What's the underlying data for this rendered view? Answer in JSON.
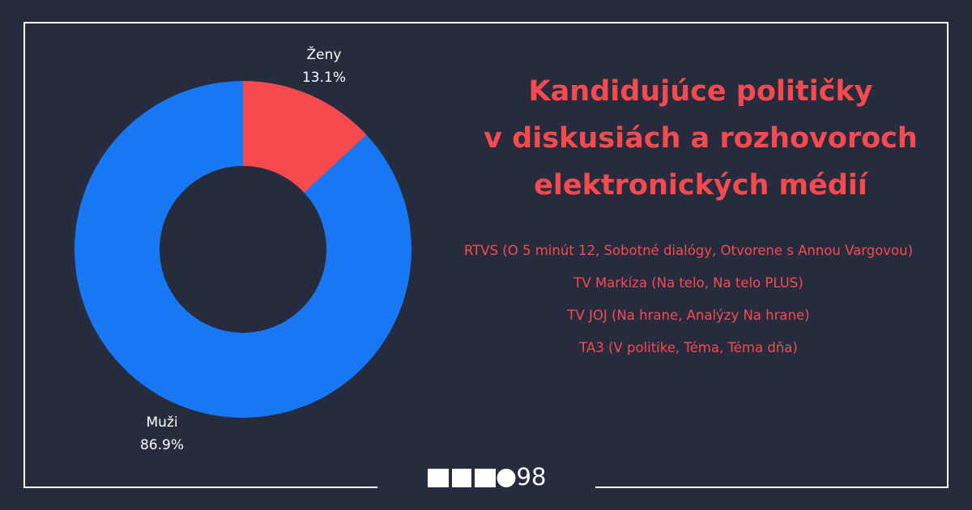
{
  "chart_data": {
    "type": "donut",
    "title": [
      "Kandidujúce političky",
      "v diskusiách a rozhovoroch",
      "elektronických médií"
    ],
    "sources": [
      "RTVS (O 5 minút 12, Sobotné dialógy, Otvorene s Annou Vargovou)",
      "TV Markíza (Na telo, Na telo PLUS)",
      "TV JOJ (Na hrane, Analýzy Na hrane)",
      "TA3 (V politike, Téma, Téma dňa)"
    ],
    "categories": [
      "Ženy",
      "Muži"
    ],
    "values": [
      13.1,
      86.9
    ],
    "value_labels": [
      "13.1%",
      "86.9%"
    ],
    "colors": [
      "#f64a4f",
      "#1877f2"
    ],
    "logo_text": "98"
  }
}
